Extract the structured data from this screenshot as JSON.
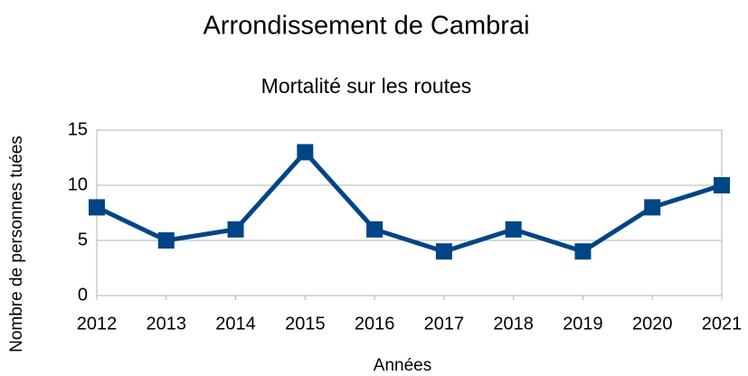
{
  "chart_data": {
    "type": "line",
    "title": "Arrondissement de Cambrai",
    "subtitle": "Mortalité sur les routes",
    "x_label": "Années",
    "y_label": "Nombre de personnes tuées",
    "categories": [
      "2012",
      "2013",
      "2014",
      "2015",
      "2016",
      "2017",
      "2018",
      "2019",
      "2020",
      "2021"
    ],
    "values": [
      8,
      5,
      6,
      13,
      6,
      4,
      6,
      4,
      8,
      10
    ],
    "color": "#004586",
    "ylim": [
      0,
      15
    ],
    "yticks": [
      0,
      5,
      10,
      15
    ],
    "grid": true
  }
}
